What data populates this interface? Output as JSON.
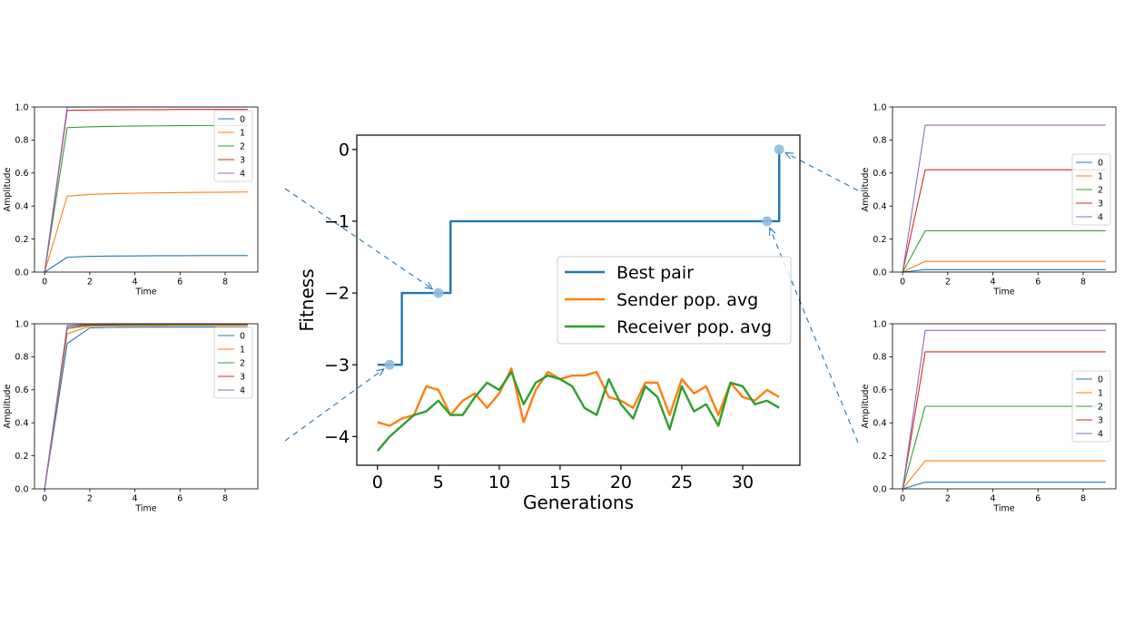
{
  "colors": {
    "c0": "#1f77b4",
    "c1": "#ff7f0e",
    "c2": "#2ca02c",
    "c3": "#d62728",
    "c4": "#9467bd",
    "highlight": "#8ebde0"
  },
  "chart_data": [
    {
      "id": "main",
      "type": "line",
      "title": "",
      "xlabel": "Generations",
      "ylabel": "Fitness",
      "xlim": [
        -1.7,
        34.7
      ],
      "ylim": [
        -4.4,
        0.2
      ],
      "xticks": [
        0,
        5,
        10,
        15,
        20,
        25,
        30
      ],
      "yticks": [
        0,
        -1,
        -2,
        -3,
        -4
      ],
      "grid": false,
      "legend_position": "center-right",
      "series": [
        {
          "name": "Best pair",
          "color": "#1f77b4",
          "step": true,
          "x": [
            0,
            1,
            2,
            3,
            4,
            5,
            6,
            7,
            8,
            9,
            10,
            11,
            12,
            13,
            14,
            15,
            16,
            17,
            18,
            19,
            20,
            21,
            22,
            23,
            24,
            25,
            26,
            27,
            28,
            29,
            30,
            31,
            32,
            33
          ],
          "y": [
            -3,
            -3,
            -2,
            -2,
            -2,
            -2,
            -1,
            -1,
            -1,
            -1,
            -1,
            -1,
            -1,
            -1,
            -1,
            -1,
            -1,
            -1,
            -1,
            -1,
            -1,
            -1,
            -1,
            -1,
            -1,
            -1,
            -1,
            -1,
            -1,
            -1,
            -1,
            -1,
            -1,
            0
          ]
        },
        {
          "name": "Sender pop. avg",
          "color": "#ff7f0e",
          "x": [
            0,
            1,
            2,
            3,
            4,
            5,
            6,
            7,
            8,
            9,
            10,
            11,
            12,
            13,
            14,
            15,
            16,
            17,
            18,
            19,
            20,
            21,
            22,
            23,
            24,
            25,
            26,
            27,
            28,
            29,
            30,
            31,
            32,
            33
          ],
          "y": [
            -3.8,
            -3.85,
            -3.75,
            -3.7,
            -3.3,
            -3.35,
            -3.7,
            -3.5,
            -3.4,
            -3.6,
            -3.4,
            -3.05,
            -3.8,
            -3.35,
            -3.1,
            -3.2,
            -3.15,
            -3.15,
            -3.1,
            -3.45,
            -3.5,
            -3.6,
            -3.25,
            -3.25,
            -3.7,
            -3.2,
            -3.4,
            -3.3,
            -3.7,
            -3.25,
            -3.45,
            -3.5,
            -3.35,
            -3.45
          ]
        },
        {
          "name": "Receiver pop. avg",
          "color": "#2ca02c",
          "x": [
            0,
            1,
            2,
            3,
            4,
            5,
            6,
            7,
            8,
            9,
            10,
            11,
            12,
            13,
            14,
            15,
            16,
            17,
            18,
            19,
            20,
            21,
            22,
            23,
            24,
            25,
            26,
            27,
            28,
            29,
            30,
            31,
            32,
            33
          ],
          "y": [
            -4.2,
            -4.0,
            -3.85,
            -3.7,
            -3.65,
            -3.5,
            -3.7,
            -3.7,
            -3.45,
            -3.25,
            -3.35,
            -3.1,
            -3.55,
            -3.25,
            -3.15,
            -3.2,
            -3.3,
            -3.6,
            -3.7,
            -3.2,
            -3.55,
            -3.75,
            -3.3,
            -3.45,
            -3.9,
            -3.3,
            -3.65,
            -3.55,
            -3.85,
            -3.25,
            -3.3,
            -3.55,
            -3.5,
            -3.6
          ]
        }
      ],
      "highlighted_points": [
        {
          "x": 1,
          "y": -3
        },
        {
          "x": 5,
          "y": -2
        },
        {
          "x": 32,
          "y": -1
        },
        {
          "x": 33,
          "y": 0
        }
      ]
    },
    {
      "id": "top-left",
      "type": "line",
      "xlabel": "Time",
      "ylabel": "Amplitude",
      "xlim": [
        -0.45,
        9.45
      ],
      "ylim": [
        0,
        1
      ],
      "xticks": [
        0,
        2,
        4,
        6,
        8
      ],
      "yticks": [
        0.0,
        0.2,
        0.4,
        0.6,
        0.8,
        1.0
      ],
      "legend_position": "upper-right",
      "x": [
        0,
        1,
        2,
        3,
        4,
        5,
        6,
        7,
        8,
        9
      ],
      "series": [
        {
          "name": "0",
          "values": [
            0,
            0.09,
            0.095,
            0.097,
            0.098,
            0.099,
            0.099,
            0.1,
            0.1,
            0.1
          ]
        },
        {
          "name": "1",
          "values": [
            0,
            0.46,
            0.47,
            0.475,
            0.478,
            0.48,
            0.482,
            0.483,
            0.484,
            0.485
          ]
        },
        {
          "name": "2",
          "values": [
            0,
            0.875,
            0.88,
            0.883,
            0.885,
            0.886,
            0.887,
            0.888,
            0.888,
            0.889
          ]
        },
        {
          "name": "3",
          "values": [
            0,
            0.98,
            0.982,
            0.983,
            0.984,
            0.984,
            0.985,
            0.985,
            0.985,
            0.985
          ]
        },
        {
          "name": "4",
          "values": [
            0,
            1.0,
            1.0,
            1.0,
            1.0,
            1.0,
            1.0,
            1.0,
            1.0,
            1.0
          ]
        }
      ]
    },
    {
      "id": "bottom-left",
      "type": "line",
      "xlabel": "Time",
      "ylabel": "Amplitude",
      "xlim": [
        -0.45,
        9.45
      ],
      "ylim": [
        0,
        1
      ],
      "xticks": [
        0,
        2,
        4,
        6,
        8
      ],
      "yticks": [
        0.0,
        0.2,
        0.4,
        0.6,
        0.8,
        1.0
      ],
      "legend_position": "upper-right",
      "x": [
        0,
        1,
        2,
        3,
        4,
        5,
        6,
        7,
        8,
        9
      ],
      "series": [
        {
          "name": "0",
          "values": [
            0,
            0.88,
            0.975,
            0.978,
            0.979,
            0.98,
            0.98,
            0.98,
            0.98,
            0.98
          ]
        },
        {
          "name": "1",
          "values": [
            0,
            0.94,
            0.985,
            0.987,
            0.988,
            0.988,
            0.989,
            0.989,
            0.989,
            0.989
          ]
        },
        {
          "name": "2",
          "values": [
            0,
            0.97,
            0.99,
            0.992,
            0.993,
            0.993,
            0.994,
            0.994,
            0.994,
            0.994
          ]
        },
        {
          "name": "3",
          "values": [
            0,
            0.98,
            0.995,
            0.996,
            0.997,
            0.997,
            0.997,
            0.997,
            0.997,
            0.997
          ]
        },
        {
          "name": "4",
          "values": [
            0,
            0.99,
            0.998,
            0.999,
            0.999,
            0.999,
            0.999,
            0.999,
            0.999,
            0.999
          ]
        }
      ]
    },
    {
      "id": "top-right",
      "type": "line",
      "xlabel": "Time",
      "ylabel": "Amplitude",
      "xlim": [
        -0.45,
        9.45
      ],
      "ylim": [
        0,
        1
      ],
      "xticks": [
        0,
        2,
        4,
        6,
        8
      ],
      "yticks": [
        0.0,
        0.2,
        0.4,
        0.6,
        0.8,
        1.0
      ],
      "legend_position": "center-right",
      "x": [
        0,
        1,
        2,
        3,
        4,
        5,
        6,
        7,
        8,
        9
      ],
      "series": [
        {
          "name": "0",
          "values": [
            0,
            0.015,
            0.015,
            0.015,
            0.015,
            0.015,
            0.015,
            0.015,
            0.015,
            0.015
          ]
        },
        {
          "name": "1",
          "values": [
            0,
            0.065,
            0.065,
            0.065,
            0.065,
            0.065,
            0.065,
            0.065,
            0.065,
            0.065
          ]
        },
        {
          "name": "2",
          "values": [
            0,
            0.25,
            0.25,
            0.25,
            0.25,
            0.25,
            0.25,
            0.25,
            0.25,
            0.25
          ]
        },
        {
          "name": "3",
          "values": [
            0,
            0.62,
            0.62,
            0.62,
            0.62,
            0.62,
            0.62,
            0.62,
            0.62,
            0.62
          ]
        },
        {
          "name": "4",
          "values": [
            0,
            0.89,
            0.89,
            0.89,
            0.89,
            0.89,
            0.89,
            0.89,
            0.89,
            0.89
          ]
        }
      ]
    },
    {
      "id": "bottom-right",
      "type": "line",
      "xlabel": "Time",
      "ylabel": "Amplitude",
      "xlim": [
        -0.45,
        9.45
      ],
      "ylim": [
        0,
        1
      ],
      "xticks": [
        0,
        2,
        4,
        6,
        8
      ],
      "yticks": [
        0.0,
        0.2,
        0.4,
        0.6,
        0.8,
        1.0
      ],
      "legend_position": "center-right",
      "x": [
        0,
        1,
        2,
        3,
        4,
        5,
        6,
        7,
        8,
        9
      ],
      "series": [
        {
          "name": "0",
          "values": [
            0,
            0.04,
            0.04,
            0.04,
            0.04,
            0.04,
            0.04,
            0.04,
            0.04,
            0.04
          ]
        },
        {
          "name": "1",
          "values": [
            0,
            0.17,
            0.17,
            0.17,
            0.17,
            0.17,
            0.17,
            0.17,
            0.17,
            0.17
          ]
        },
        {
          "name": "2",
          "values": [
            0,
            0.5,
            0.5,
            0.5,
            0.5,
            0.5,
            0.5,
            0.5,
            0.5,
            0.5
          ]
        },
        {
          "name": "3",
          "values": [
            0,
            0.83,
            0.83,
            0.83,
            0.83,
            0.83,
            0.83,
            0.83,
            0.83,
            0.83
          ]
        },
        {
          "name": "4",
          "values": [
            0,
            0.96,
            0.96,
            0.96,
            0.96,
            0.96,
            0.96,
            0.96,
            0.96,
            0.96
          ]
        }
      ]
    }
  ]
}
